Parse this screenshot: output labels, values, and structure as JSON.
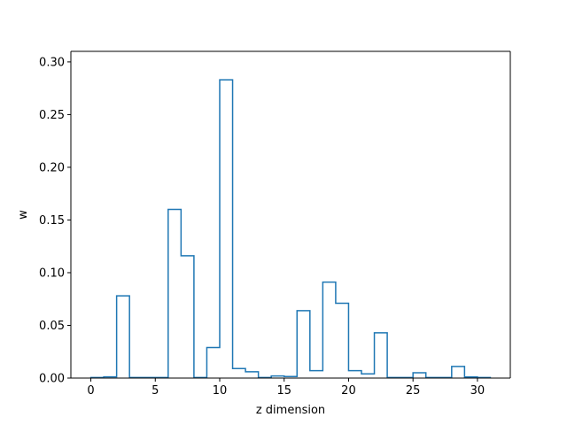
{
  "chart_data": {
    "type": "step-histogram",
    "xlabel": "z dimension",
    "ylabel": "w",
    "xlim": [
      -1.55,
      32.55
    ],
    "ylim": [
      0.0,
      0.31
    ],
    "xticks": [
      0,
      5,
      10,
      15,
      20,
      25,
      30
    ],
    "yticks": [
      0.0,
      0.05,
      0.1,
      0.15,
      0.2,
      0.25,
      0.3
    ],
    "ytick_labels": [
      "0.00",
      "0.05",
      "0.10",
      "0.15",
      "0.20",
      "0.25",
      "0.30"
    ],
    "bin_start": 0,
    "bin_end": 31,
    "values": [
      0.0005,
      0.0012,
      0.078,
      0.0005,
      0.0005,
      0.0005,
      0.16,
      0.116,
      0.0005,
      0.029,
      0.283,
      0.009,
      0.006,
      0.0005,
      0.002,
      0.0015,
      0.064,
      0.007,
      0.091,
      0.071,
      0.007,
      0.004,
      0.043,
      0.0005,
      0.0005,
      0.005,
      0.0005,
      0.0005,
      0.011,
      0.001,
      0.0005
    ],
    "line_color": "#1f77b4",
    "grid": false
  }
}
